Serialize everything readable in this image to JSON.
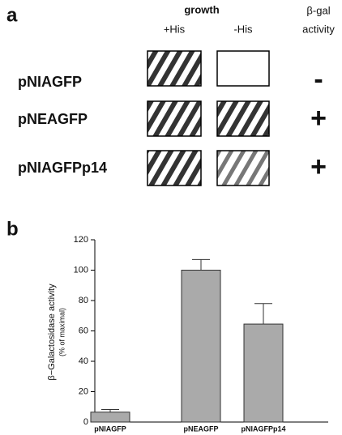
{
  "panel_a": {
    "label": "a",
    "growth": "growth",
    "col_plus": "+His",
    "col_minus": "-His",
    "bgal_line1": "β-gal",
    "bgal_line2": "activity",
    "rows": [
      {
        "name": "pNIAGFP",
        "result": "-"
      },
      {
        "name": "pNEAGFP",
        "result": "+"
      },
      {
        "name": "pNIAGFPp14",
        "result": "+"
      }
    ]
  },
  "chart_data": {
    "type": "bar",
    "panel_label": "b",
    "y_label": "β−Galactosidase activity",
    "y_sublabel": "(% of maximal)",
    "categories": [
      "pNIAGFP",
      "pNEAGFP",
      "pNIAGFPp14"
    ],
    "values": [
      6.5,
      100,
      64.5
    ],
    "errors": [
      1.8,
      7,
      13.5
    ],
    "color": "#aaaaaa",
    "ylim": [
      0,
      120
    ],
    "yticks": [
      0,
      20,
      40,
      60,
      80,
      100,
      120
    ]
  }
}
